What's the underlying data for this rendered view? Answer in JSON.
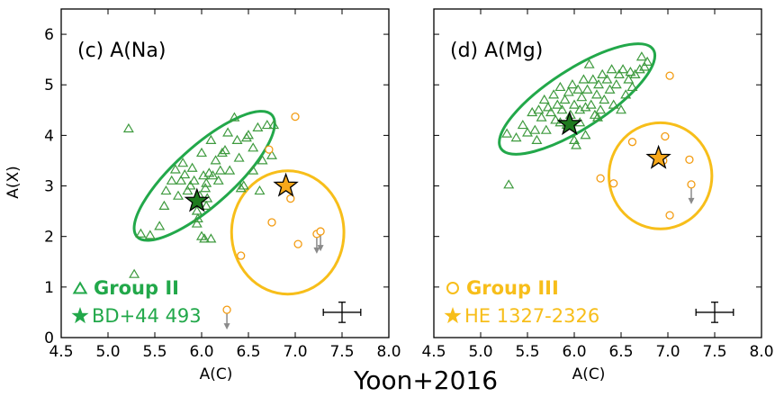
{
  "caption": "Yoon+2016",
  "colors": {
    "green": "#22a84a",
    "green_marker": "#3e9a3e",
    "orange": "#f7be1a",
    "orange_marker": "#f39c12",
    "star_green": "#1f7a1f",
    "star_orange": "#f7a81a",
    "arrow": "#8a8a8a"
  },
  "chart_data": [
    {
      "type": "scatter",
      "panel_label": "(c) A(Na)",
      "xlabel": "A(C)",
      "ylabel": "A(X)",
      "xlim": [
        4.5,
        8.0
      ],
      "ylim": [
        0,
        6.5
      ],
      "xticks": [
        "4.5",
        "5.0",
        "5.5",
        "6.0",
        "6.5",
        "7.0",
        "7.5",
        "8.0"
      ],
      "yticks": [
        "0",
        "1",
        "2",
        "3",
        "4",
        "5",
        "6"
      ],
      "legend": {
        "marker_label": "Group II",
        "star_label": "BD+44 493",
        "color": "green"
      },
      "group_ii": [
        [
          5.22,
          4.13
        ],
        [
          5.28,
          1.25
        ],
        [
          5.35,
          2.05
        ],
        [
          5.45,
          2.02
        ],
        [
          5.55,
          2.2
        ],
        [
          5.6,
          2.6
        ],
        [
          5.62,
          2.9
        ],
        [
          5.68,
          3.1
        ],
        [
          5.72,
          3.32
        ],
        [
          5.75,
          2.8
        ],
        [
          5.78,
          3.1
        ],
        [
          5.8,
          3.45
        ],
        [
          5.82,
          3.22
        ],
        [
          5.85,
          2.9
        ],
        [
          5.88,
          3.0
        ],
        [
          5.9,
          3.35
        ],
        [
          5.92,
          3.1
        ],
        [
          5.95,
          2.5
        ],
        [
          5.96,
          2.35
        ],
        [
          5.98,
          2.8
        ],
        [
          6.0,
          3.65
        ],
        [
          6.0,
          2.0
        ],
        [
          6.02,
          3.2
        ],
        [
          6.04,
          2.95
        ],
        [
          6.05,
          3.05
        ],
        [
          6.06,
          2.75
        ],
        [
          6.08,
          3.25
        ],
        [
          6.1,
          1.95
        ],
        [
          6.1,
          3.9
        ],
        [
          6.12,
          3.2
        ],
        [
          6.15,
          3.5
        ],
        [
          6.18,
          3.1
        ],
        [
          6.2,
          3.3
        ],
        [
          6.22,
          3.65
        ],
        [
          6.25,
          3.7
        ],
        [
          6.28,
          4.05
        ],
        [
          6.3,
          3.3
        ],
        [
          6.35,
          4.35
        ],
        [
          6.38,
          3.9
        ],
        [
          6.4,
          3.55
        ],
        [
          6.42,
          2.95
        ],
        [
          6.45,
          3.0
        ],
        [
          6.48,
          3.95
        ],
        [
          6.5,
          4.0
        ],
        [
          6.55,
          3.75
        ],
        [
          6.6,
          4.15
        ],
        [
          6.62,
          2.9
        ],
        [
          6.65,
          3.5
        ],
        [
          6.7,
          4.2
        ],
        [
          6.75,
          3.6
        ],
        [
          6.77,
          4.2
        ],
        [
          6.03,
          1.95
        ],
        [
          6.05,
          2.6
        ],
        [
          5.95,
          2.25
        ],
        [
          6.55,
          3.3
        ]
      ],
      "group_iii": [
        [
          6.42,
          1.62
        ],
        [
          6.72,
          3.72
        ],
        [
          6.75,
          2.28
        ],
        [
          6.95,
          2.75
        ],
        [
          7.0,
          4.37
        ],
        [
          7.03,
          1.85
        ],
        [
          7.23,
          2.05
        ],
        [
          7.27,
          2.1
        ],
        [
          6.27,
          0.55
        ]
      ],
      "upper_limits": [
        [
          7.23,
          2.05
        ],
        [
          7.27,
          2.1
        ],
        [
          6.27,
          0.55
        ]
      ],
      "star_green": [
        5.95,
        2.7
      ],
      "star_orange": [
        6.9,
        3.0
      ],
      "ellipse_green": {
        "cx": 6.03,
        "cy": 3.2,
        "rx": 0.97,
        "ry": 0.58,
        "angle": 42
      },
      "circle_orange": {
        "cx": 6.92,
        "cy": 2.08,
        "rx": 0.6,
        "ry": 1.22
      },
      "error_bar": {
        "x": 7.5,
        "y": 0.5,
        "xerr": 0.2,
        "yerr": 0.2
      }
    },
    {
      "type": "scatter",
      "panel_label": "(d) A(Mg)",
      "xlabel": "A(C)",
      "ylabel": "",
      "xlim": [
        4.5,
        8.0
      ],
      "ylim": [
        0,
        6.5
      ],
      "xticks": [
        "4.5",
        "5.0",
        "5.5",
        "6.0",
        "6.5",
        "7.0",
        "7.5",
        "8.0"
      ],
      "yticks": [],
      "legend": {
        "marker_label": "Group III",
        "star_label": "HE 1327-2326",
        "color": "orange"
      },
      "group_ii": [
        [
          5.3,
          3.02
        ],
        [
          5.28,
          4.03
        ],
        [
          5.38,
          3.95
        ],
        [
          5.45,
          4.2
        ],
        [
          5.5,
          4.05
        ],
        [
          5.55,
          4.45
        ],
        [
          5.58,
          4.1
        ],
        [
          5.6,
          3.9
        ],
        [
          5.62,
          4.5
        ],
        [
          5.65,
          4.35
        ],
        [
          5.68,
          4.7
        ],
        [
          5.7,
          4.1
        ],
        [
          5.72,
          4.55
        ],
        [
          5.75,
          4.45
        ],
        [
          5.78,
          4.8
        ],
        [
          5.8,
          4.3
        ],
        [
          5.82,
          4.6
        ],
        [
          5.85,
          4.95
        ],
        [
          5.87,
          4.5
        ],
        [
          5.9,
          4.7
        ],
        [
          5.92,
          4.2
        ],
        [
          5.94,
          4.85
        ],
        [
          5.96,
          4.4
        ],
        [
          5.98,
          5.0
        ],
        [
          6.0,
          4.6
        ],
        [
          6.02,
          3.8
        ],
        [
          6.04,
          4.9
        ],
        [
          6.06,
          4.5
        ],
        [
          6.08,
          4.75
        ],
        [
          6.1,
          5.1
        ],
        [
          6.12,
          4.55
        ],
        [
          6.14,
          4.9
        ],
        [
          6.16,
          5.4
        ],
        [
          6.18,
          4.6
        ],
        [
          6.2,
          5.1
        ],
        [
          6.22,
          4.4
        ],
        [
          6.24,
          4.8
        ],
        [
          6.26,
          5.0
        ],
        [
          6.28,
          4.5
        ],
        [
          6.3,
          5.2
        ],
        [
          6.32,
          4.7
        ],
        [
          6.35,
          5.1
        ],
        [
          6.38,
          4.9
        ],
        [
          6.4,
          5.3
        ],
        [
          6.42,
          4.6
        ],
        [
          6.45,
          5.0
        ],
        [
          6.48,
          5.2
        ],
        [
          6.5,
          4.5
        ],
        [
          6.52,
          5.3
        ],
        [
          6.55,
          4.8
        ],
        [
          6.58,
          5.1
        ],
        [
          6.6,
          5.25
        ],
        [
          6.62,
          4.95
        ],
        [
          6.65,
          5.2
        ],
        [
          6.7,
          5.3
        ],
        [
          6.72,
          5.55
        ],
        [
          6.75,
          5.35
        ],
        [
          6.78,
          5.45
        ],
        [
          6.0,
          3.9
        ],
        [
          6.06,
          4.25
        ],
        [
          6.12,
          4.0
        ],
        [
          5.85,
          4.25
        ],
        [
          6.25,
          4.35
        ]
      ],
      "group_iii": [
        [
          6.28,
          3.15
        ],
        [
          6.42,
          3.05
        ],
        [
          6.62,
          3.87
        ],
        [
          6.97,
          3.98
        ],
        [
          7.02,
          2.42
        ],
        [
          7.02,
          5.18
        ],
        [
          7.23,
          3.52
        ],
        [
          7.25,
          3.03
        ],
        [
          6.95,
          3.5
        ]
      ],
      "upper_limits": [
        [
          7.25,
          3.03
        ]
      ],
      "star_green": [
        5.95,
        4.22
      ],
      "star_orange": [
        6.9,
        3.55
      ],
      "ellipse_green": {
        "cx": 6.03,
        "cy": 4.72,
        "rx": 0.97,
        "ry": 0.58,
        "angle": 33
      },
      "circle_orange": {
        "cx": 6.92,
        "cy": 3.2,
        "rx": 0.55,
        "ry": 1.05
      },
      "error_bar": {
        "x": 7.5,
        "y": 0.5,
        "xerr": 0.2,
        "yerr": 0.2
      }
    }
  ]
}
